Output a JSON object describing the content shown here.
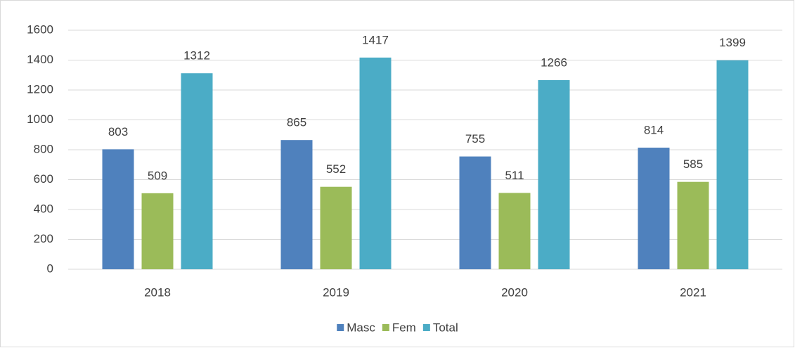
{
  "chart_data": {
    "type": "bar",
    "categories": [
      "2018",
      "2019",
      "2020",
      "2021"
    ],
    "series": [
      {
        "name": "Masc",
        "color": "#4f81bd",
        "values": [
          803,
          865,
          755,
          814
        ]
      },
      {
        "name": "Fem",
        "color": "#9bbb59",
        "values": [
          509,
          552,
          511,
          585
        ]
      },
      {
        "name": "Total",
        "color": "#4bacc6",
        "values": [
          1312,
          1417,
          1266,
          1399
        ]
      }
    ],
    "ylim": [
      0,
      1600
    ],
    "yticks": [
      0,
      200,
      400,
      600,
      800,
      1000,
      1200,
      1400,
      1600
    ],
    "grid": true,
    "legend": "bottom",
    "data_labels": true
  }
}
